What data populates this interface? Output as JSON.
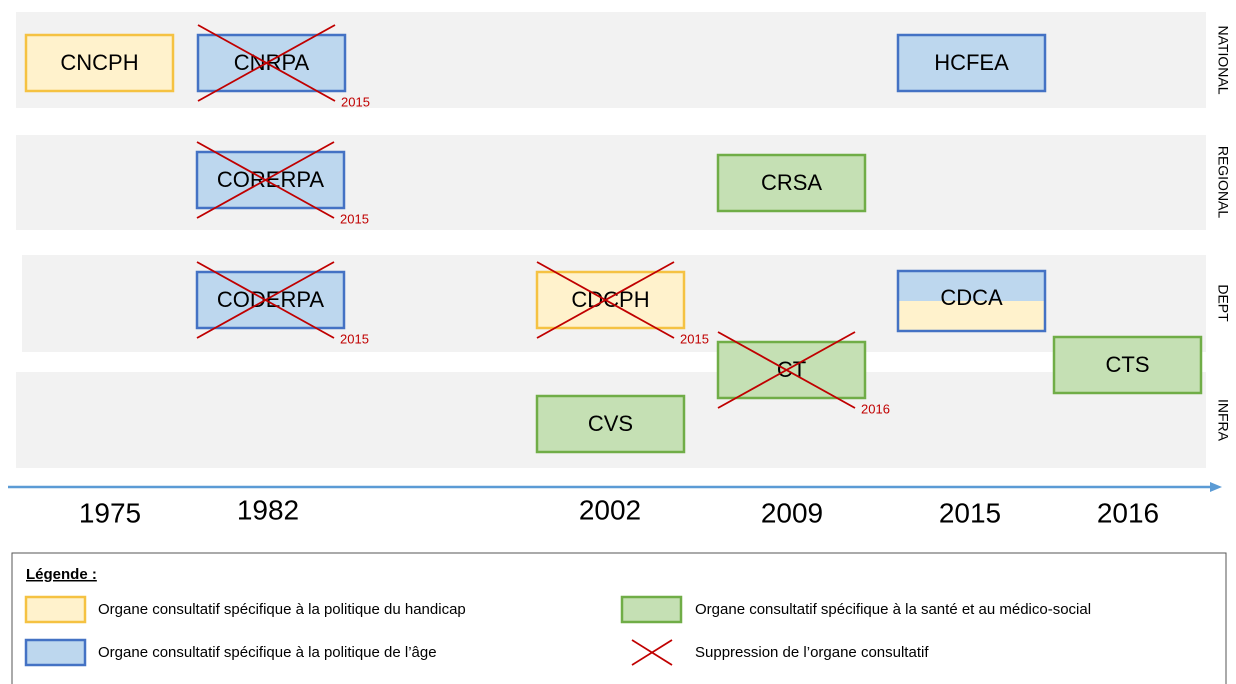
{
  "rows": [
    "NATIONAL",
    "REGIONAL",
    "DEPT",
    "INFRA"
  ],
  "years": [
    "1975",
    "1982",
    "2002",
    "2009",
    "2015",
    "2016"
  ],
  "nodes": [
    {
      "label": "CNCPH",
      "fill": "#fff2cc",
      "stroke": "#f5c242"
    },
    {
      "label": "CNRPA",
      "fill": "#bdd7ee",
      "stroke": "#4472c4",
      "removed": "2015"
    },
    {
      "label": "HCFEA",
      "fill": "#bdd7ee",
      "stroke": "#4472c4"
    },
    {
      "label": "CORERPA",
      "fill": "#bdd7ee",
      "stroke": "#4472c4",
      "removed": "2015"
    },
    {
      "label": "CRSA",
      "fill": "#c5e0b4",
      "stroke": "#70ad47"
    },
    {
      "label": "CODERPA",
      "fill": "#bdd7ee",
      "stroke": "#4472c4",
      "removed": "2015"
    },
    {
      "label": "CDCPH",
      "fill": "#fff2cc",
      "stroke": "#f5c242",
      "removed": "2015"
    },
    {
      "label": "CDCA",
      "fill": "#bdd7ee",
      "fill2": "#fff2cc",
      "stroke": "#4472c4"
    },
    {
      "label": "CT",
      "fill": "#c5e0b4",
      "stroke": "#70ad47",
      "removed": "2016"
    },
    {
      "label": "CTS",
      "fill": "#c5e0b4",
      "stroke": "#70ad47"
    },
    {
      "label": "CVS",
      "fill": "#c5e0b4",
      "stroke": "#70ad47"
    }
  ],
  "legend": {
    "title": "Légende :",
    "items": [
      {
        "label": "Organe consultatif spécifique à la politique du handicap",
        "fill": "#fff2cc",
        "stroke": "#f5c242"
      },
      {
        "label": "Organe consultatif spécifique à la santé et au médico-social",
        "fill": "#c5e0b4",
        "stroke": "#70ad47"
      },
      {
        "label": "Organe consultatif spécifique à la politique de l’âge",
        "fill": "#bdd7ee",
        "stroke": "#4472c4"
      },
      {
        "label": "Suppression de l’organe consultatif",
        "cross": "#c00000"
      }
    ]
  }
}
